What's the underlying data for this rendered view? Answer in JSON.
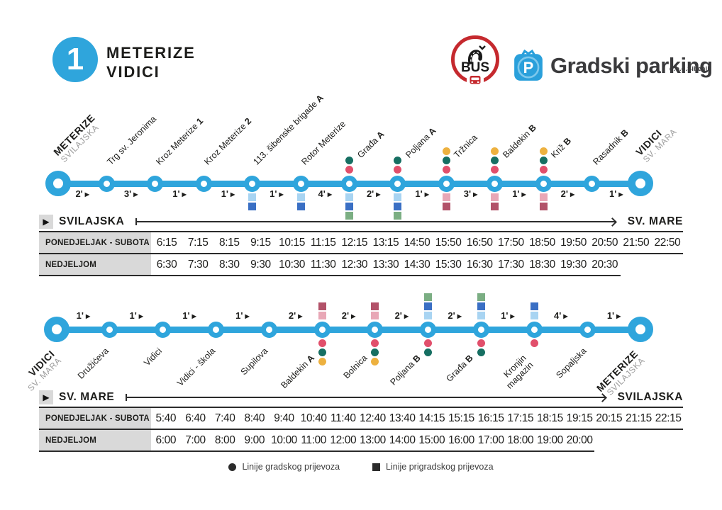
{
  "header": {
    "route_number": "1",
    "title_line1": "METERIZE",
    "title_line2": "VIDICI",
    "bus_text": "BUS",
    "parking_p": "P",
    "parking_text": "Gradski parking",
    "parking_sub": "d.o.o.Šibenik"
  },
  "colors": {
    "blue": "#2FA5DC",
    "lines": {
      "teal": "#166F62",
      "rose": "#E14F6B",
      "yellow": "#EDB13F",
      "lightblue": "#A8D4F2",
      "darkblue": "#3A6FC4",
      "green": "#7BAE83",
      "pink": "#E8A7B6",
      "darkred": "#B25269"
    }
  },
  "direction1": {
    "stops": [
      {
        "terminal": true,
        "name": "METERIZE",
        "sub": "SVILAJSKA"
      },
      {
        "name": "Trg sv. Jeronima"
      },
      {
        "name": "Kroz Meterize",
        "suffix": "1"
      },
      {
        "name": "Kroz Meterize",
        "suffix": "2"
      },
      {
        "name": "113. šibenske brigade",
        "suffix": "A",
        "squares": [
          "lightblue",
          "darkblue"
        ]
      },
      {
        "name": "Rotor Meterize",
        "squares": [
          "lightblue",
          "darkblue"
        ]
      },
      {
        "name": "Građa",
        "suffix": "A",
        "circles": [
          "teal",
          "rose"
        ],
        "squares": [
          "lightblue",
          "darkblue",
          "green"
        ]
      },
      {
        "name": "Poljana",
        "suffix": "A",
        "circles": [
          "teal",
          "rose"
        ],
        "squares": [
          "lightblue",
          "darkblue",
          "green"
        ]
      },
      {
        "name": "Tržnica",
        "circles": [
          "yellow",
          "teal",
          "rose"
        ],
        "squares": [
          "pink",
          "darkred"
        ]
      },
      {
        "name": "Baldekin",
        "suffix": "B",
        "circles": [
          "yellow",
          "teal",
          "rose"
        ],
        "squares": [
          "pink",
          "darkred"
        ]
      },
      {
        "name": "Križ",
        "suffix": "B",
        "circles": [
          "yellow",
          "teal",
          "rose"
        ],
        "squares": [
          "pink",
          "darkred"
        ]
      },
      {
        "name": "Rasadnik",
        "suffix": "B"
      },
      {
        "terminal": true,
        "name": "VIDICI",
        "sub": "SV. MARA"
      }
    ],
    "segments": [
      "2'",
      "3'",
      "1'",
      "1'",
      "1'",
      "4'",
      "2'",
      "1'",
      "3'",
      "1'",
      "2'",
      "1'"
    ],
    "table": {
      "from": "SVILAJSKA",
      "to": "SV. MARE",
      "columns": 17,
      "rows": [
        {
          "label": "PONEDJELJAK - SUBOTA",
          "times": [
            "6:15",
            "7:15",
            "8:15",
            "9:15",
            "10:15",
            "11:15",
            "12:15",
            "13:15",
            "14:50",
            "15:50",
            "16:50",
            "17:50",
            "18:50",
            "19:50",
            "20:50",
            "21:50",
            "22:50"
          ]
        },
        {
          "label": "NEDJELJOM",
          "times": [
            "6:30",
            "7:30",
            "8:30",
            "9:30",
            "10:30",
            "11:30",
            "12:30",
            "13:30",
            "14:30",
            "15:30",
            "16:30",
            "17:30",
            "18:30",
            "19:30",
            "20:30"
          ]
        }
      ]
    }
  },
  "direction2": {
    "stops": [
      {
        "terminal": true,
        "name": "VIDICI",
        "sub": "SV. MARA"
      },
      {
        "name": "Družićeva"
      },
      {
        "name": "Vidici"
      },
      {
        "name": "Vidici - škola"
      },
      {
        "name": "Supilova"
      },
      {
        "name": "Baldekin",
        "suffix": "A",
        "squares": [
          "darkred",
          "pink"
        ],
        "circles": [
          "rose",
          "teal",
          "yellow"
        ]
      },
      {
        "name": "Bolnica",
        "squares": [
          "darkred",
          "pink"
        ],
        "circles": [
          "rose",
          "teal",
          "yellow"
        ]
      },
      {
        "name": "Poljana",
        "suffix": "B",
        "squares": [
          "green",
          "darkblue",
          "lightblue"
        ],
        "circles": [
          "rose",
          "teal"
        ]
      },
      {
        "name": "Građa",
        "suffix": "B",
        "squares": [
          "green",
          "darkblue",
          "lightblue"
        ],
        "circles": [
          "rose",
          "teal"
        ]
      },
      {
        "name": "Kronjin magazin",
        "wrap": true,
        "squares": [
          "darkblue",
          "lightblue"
        ],
        "circles": [
          "rose"
        ]
      },
      {
        "name": "Sopaljska"
      },
      {
        "terminal": true,
        "name": "METERIZE",
        "sub": "SVILAJSKA"
      }
    ],
    "segments": [
      "1'",
      "1'",
      "1'",
      "1'",
      "2'",
      "2'",
      "2'",
      "2'",
      "1'",
      "4'",
      "1'"
    ],
    "table": {
      "from": "SV. MARE",
      "to": "SVILAJSKA",
      "columns": 18,
      "rows": [
        {
          "label": "PONEDJELJAK - SUBOTA",
          "times": [
            "5:40",
            "6:40",
            "7:40",
            "8:40",
            "9:40",
            "10:40",
            "11:40",
            "12:40",
            "13:40",
            "14:15",
            "15:15",
            "16:15",
            "17:15",
            "18:15",
            "19:15",
            "20:15",
            "21:15",
            "22:15"
          ]
        },
        {
          "label": "NEDJELJOM",
          "times": [
            "6:00",
            "7:00",
            "8:00",
            "9:00",
            "10:00",
            "11:00",
            "12:00",
            "13:00",
            "14:00",
            "15:00",
            "16:00",
            "17:00",
            "18:00",
            "19:00",
            "20:00"
          ]
        }
      ]
    }
  },
  "legend": {
    "city": "Linije gradskog prijevoza",
    "suburban": "Linije prigradskog prijevoza"
  }
}
